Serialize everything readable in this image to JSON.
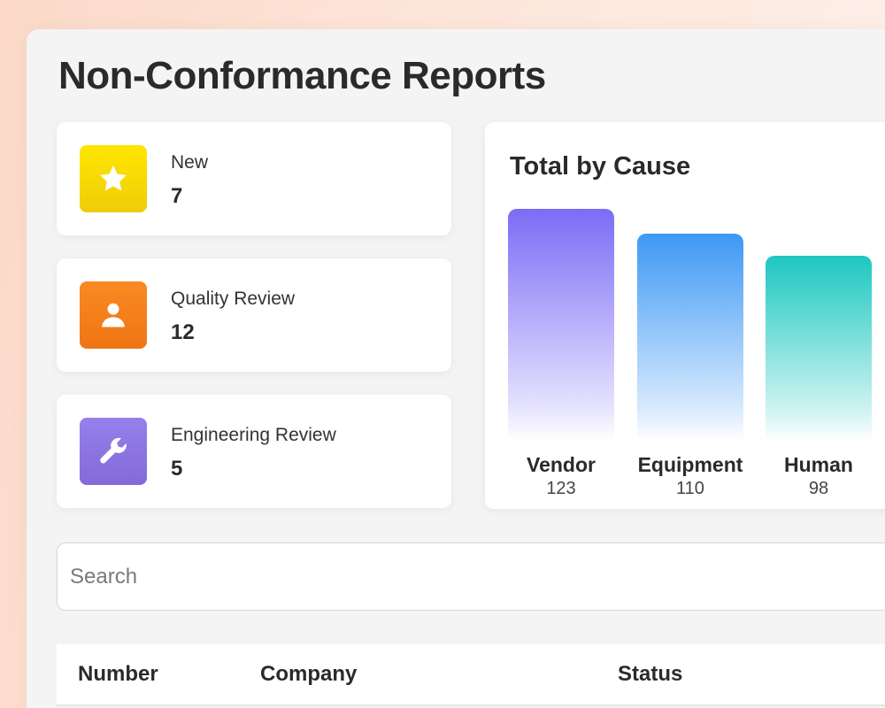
{
  "page": {
    "title": "Non-Conformance Reports"
  },
  "stats": [
    {
      "label": "New",
      "count": "7",
      "icon": "star-icon",
      "color": "#f5d90a"
    },
    {
      "label": "Quality Review",
      "count": "12",
      "icon": "user-icon",
      "color": "#f47e1b"
    },
    {
      "label": "Engineering Review",
      "count": "5",
      "icon": "wrench-icon",
      "color": "#8b73e0"
    }
  ],
  "chart_data": {
    "type": "bar",
    "title": "Total by Cause",
    "categories": [
      "Vendor",
      "Equipment",
      "Human"
    ],
    "values": [
      123,
      110,
      98
    ],
    "value_labels": [
      "123",
      "110",
      "98"
    ],
    "colors": [
      "#7b6cf6",
      "#3d98f5",
      "#1dc7c0"
    ]
  },
  "search": {
    "placeholder": "Search",
    "value": ""
  },
  "table": {
    "columns": [
      "Number",
      "Company",
      "Status"
    ]
  }
}
